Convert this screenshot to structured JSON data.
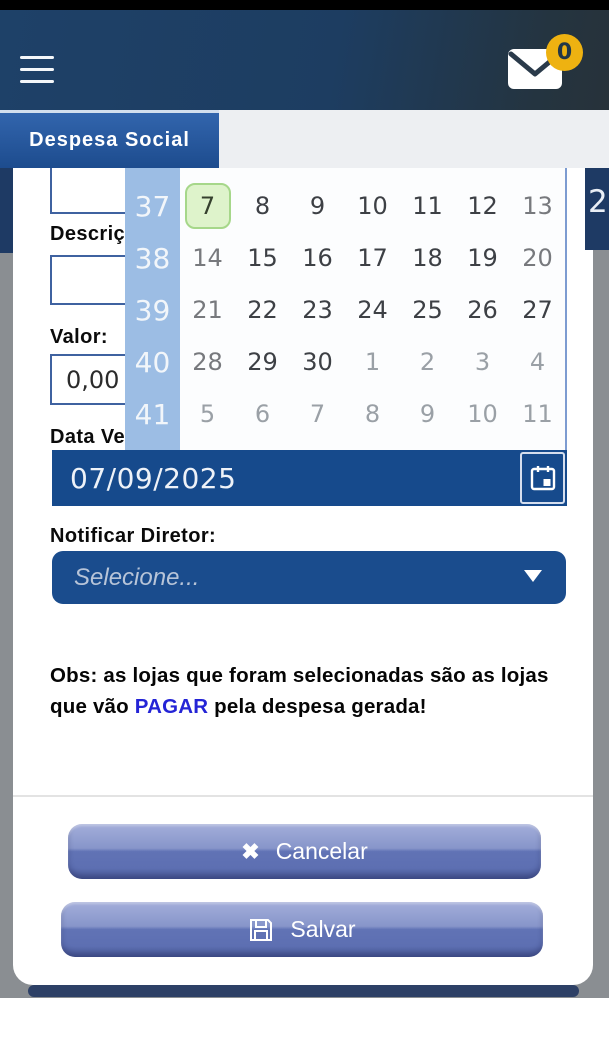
{
  "header": {
    "badge_count": "0"
  },
  "tab": {
    "label": "Despesa Social"
  },
  "background": {
    "clipped_number": "2"
  },
  "form": {
    "descricao_label": "Descrição:",
    "valor_label": "Valor:",
    "valor_value": "0,00",
    "data_vencimento_label": "Data Vencimento:",
    "data_vencimento_value": "07/09/2025",
    "notificar_label": "Notificar Diretor:",
    "select_placeholder": "Selecione...",
    "obs": {
      "prefix": "Obs: as lojas que foram selecionadas são as lojas que vão ",
      "highlight": "PAGAR",
      "suffix": " pela despesa gerada!"
    }
  },
  "calendar": {
    "selected_day": "7",
    "rows": [
      {
        "week": "37",
        "days": [
          {
            "d": "7",
            "type": "selected"
          },
          {
            "d": "8",
            "type": "weekday"
          },
          {
            "d": "9",
            "type": "weekday"
          },
          {
            "d": "10",
            "type": "weekday"
          },
          {
            "d": "11",
            "type": "weekday"
          },
          {
            "d": "12",
            "type": "weekday"
          },
          {
            "d": "13",
            "type": "weekend"
          }
        ]
      },
      {
        "week": "38",
        "days": [
          {
            "d": "14",
            "type": "weekend"
          },
          {
            "d": "15",
            "type": "weekday"
          },
          {
            "d": "16",
            "type": "weekday"
          },
          {
            "d": "17",
            "type": "weekday"
          },
          {
            "d": "18",
            "type": "weekday"
          },
          {
            "d": "19",
            "type": "weekday"
          },
          {
            "d": "20",
            "type": "weekend"
          }
        ]
      },
      {
        "week": "39",
        "days": [
          {
            "d": "21",
            "type": "weekend"
          },
          {
            "d": "22",
            "type": "weekday"
          },
          {
            "d": "23",
            "type": "weekday"
          },
          {
            "d": "24",
            "type": "weekday"
          },
          {
            "d": "25",
            "type": "weekday"
          },
          {
            "d": "26",
            "type": "weekday"
          },
          {
            "d": "27",
            "type": "weekday"
          }
        ]
      },
      {
        "week": "40",
        "days": [
          {
            "d": "28",
            "type": "weekend"
          },
          {
            "d": "29",
            "type": "weekday"
          },
          {
            "d": "30",
            "type": "weekday"
          },
          {
            "d": "1",
            "type": "other"
          },
          {
            "d": "2",
            "type": "other"
          },
          {
            "d": "3",
            "type": "other"
          },
          {
            "d": "4",
            "type": "other"
          }
        ]
      },
      {
        "week": "41",
        "days": [
          {
            "d": "5",
            "type": "other"
          },
          {
            "d": "6",
            "type": "other"
          },
          {
            "d": "7",
            "type": "other"
          },
          {
            "d": "8",
            "type": "other"
          },
          {
            "d": "9",
            "type": "other"
          },
          {
            "d": "10",
            "type": "other"
          },
          {
            "d": "11",
            "type": "other"
          }
        ]
      }
    ]
  },
  "buttons": {
    "cancel_label": "Cancelar",
    "save_label": "Salvar",
    "cancel_icon_glyph": "✖"
  },
  "icons": {
    "menu": "hamburger-icon",
    "messages": "envelope-icon",
    "date_picker": "calendar-icon",
    "select_arrow": "chevron-down-icon",
    "cancel": "x-icon",
    "save": "floppy-disk-icon"
  },
  "colors": {
    "header_navy": "#1d3d61",
    "tab_blue": "#2a5ca3",
    "field_navy": "#174a8c",
    "week_column_blue": "#9cbde4",
    "selected_day_green": "#def3cb",
    "badge_gold": "#eeb211",
    "button_blue": "#6173b5",
    "highlight_text_blue": "#2424d6",
    "backdrop_gray": "#8a8e92"
  }
}
